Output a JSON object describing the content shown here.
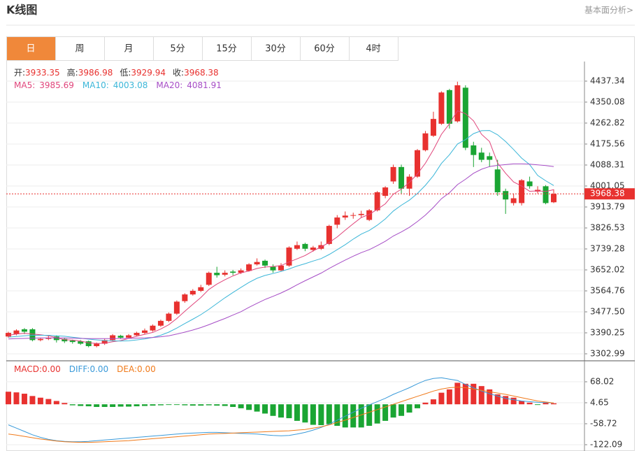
{
  "header": {
    "title": "K线图",
    "link": "基本面分析>"
  },
  "tabs": [
    "日",
    "周",
    "月",
    "5分",
    "15分",
    "30分",
    "60分",
    "4时"
  ],
  "active_tab": 0,
  "chart_data": [
    {
      "type": "candlestick",
      "ohlc_labels": {
        "open": "开:",
        "high": "高:",
        "low": "低:",
        "close": "收:"
      },
      "up_color": "#e8312f",
      "down_color": "#1aa533",
      "ylim": [
        3276.8,
        4512.97
      ],
      "yticks": [
        4437.34,
        4350.08,
        4262.82,
        4175.56,
        4088.31,
        4001.05,
        3913.79,
        3826.53,
        3739.28,
        3652.02,
        3564.76,
        {
          "value": 3477.5,
          "label": "3477.50"
        },
        3390.25,
        3302.99
      ],
      "grid": true,
      "open": [
        3375,
        3385,
        3405,
        3405,
        3360,
        3365,
        3375,
        3365,
        3358,
        3355,
        3355,
        3335,
        3345,
        3360,
        3378,
        3370,
        3380,
        3390,
        3400,
        3420,
        3440,
        3470,
        3522,
        3550,
        3565,
        3590,
        3640,
        3632,
        3645,
        3640,
        3648,
        3675,
        3690,
        3665,
        3650,
        3670,
        3740,
        3760,
        3735,
        3740,
        3760,
        3840,
        3870,
        3878,
        3880,
        3860,
        3900,
        3960,
        4020,
        4080,
        3990,
        4040,
        4150,
        4210,
        4260,
        4400,
        4270,
        4410,
        4170,
        4140,
        4125,
        4070,
        3980,
        3930,
        3930,
        4020,
        3978,
        4000,
        3933.35
      ],
      "high": [
        3395,
        3405,
        3410,
        3410,
        3370,
        3378,
        3380,
        3370,
        3362,
        3360,
        3358,
        3350,
        3365,
        3385,
        3382,
        3385,
        3395,
        3408,
        3425,
        3445,
        3475,
        3525,
        3555,
        3572,
        3590,
        3645,
        3665,
        3650,
        3652,
        3658,
        3680,
        3700,
        3695,
        3675,
        3680,
        3750,
        3770,
        3765,
        3752,
        3770,
        3840,
        3880,
        3895,
        3890,
        3898,
        3905,
        3980,
        4000,
        4090,
        4090,
        4050,
        4155,
        4230,
        4310,
        4395,
        4405,
        4435,
        4420,
        4185,
        4160,
        4140,
        4110,
        3990,
        3970,
        4030,
        4040,
        4000,
        4005,
        3986.98
      ],
      "low": [
        3370,
        3380,
        3385,
        3355,
        3355,
        3360,
        3350,
        3348,
        3345,
        3340,
        3330,
        3330,
        3340,
        3355,
        3365,
        3368,
        3377,
        3385,
        3395,
        3415,
        3435,
        3465,
        3515,
        3545,
        3560,
        3585,
        3620,
        3625,
        3630,
        3635,
        3645,
        3670,
        3660,
        3640,
        3645,
        3665,
        3735,
        3730,
        3728,
        3735,
        3755,
        3825,
        3860,
        3865,
        3870,
        3855,
        3895,
        3950,
        4010,
        3970,
        3960,
        4035,
        4145,
        4205,
        4255,
        4240,
        4265,
        4150,
        4080,
        4100,
        4080,
        3960,
        3885,
        3920,
        3920,
        3990,
        3970,
        3925,
        3929.94
      ],
      "close": [
        3390,
        3400,
        3395,
        3360,
        3365,
        3370,
        3360,
        3355,
        3352,
        3345,
        3335,
        3345,
        3360,
        3380,
        3370,
        3380,
        3390,
        3400,
        3420,
        3440,
        3470,
        3520,
        3550,
        3565,
        3580,
        3640,
        3630,
        3640,
        3640,
        3650,
        3675,
        3685,
        3670,
        3650,
        3670,
        3745,
        3755,
        3740,
        3745,
        3755,
        3835,
        3870,
        3878,
        3880,
        3885,
        3900,
        3975,
        3995,
        4080,
        3990,
        4040,
        4150,
        4220,
        4280,
        4390,
        4260,
        4420,
        4160,
        4130,
        4110,
        4110,
        3975,
        3945,
        3950,
        4025,
        4000,
        3985,
        3930,
        3968.38
      ],
      "series": [
        {
          "name": "MA5:",
          "color": "#e0457b",
          "values": [
            3380,
            3385,
            3388,
            3385,
            3382,
            3378,
            3370,
            3362,
            3360,
            3356,
            3349,
            3346,
            3347,
            3353,
            3358,
            3367,
            3376,
            3384,
            3392,
            3406,
            3424,
            3450,
            3480,
            3509,
            3537,
            3571,
            3593,
            3611,
            3627,
            3640,
            3647,
            3658,
            3664,
            3666,
            3670,
            3685,
            3698,
            3712,
            3731,
            3748,
            3766,
            3789,
            3817,
            3844,
            3870,
            3883,
            3904,
            3927,
            3967,
            3988,
            4016,
            4051,
            4096,
            4152,
            4216,
            4260,
            4314,
            4302,
            4272,
            4216,
            4186,
            4097,
            4054,
            4018,
            4001,
            3979,
            3981,
            3978,
            3985.69
          ]
        },
        {
          "name": "MA10:",
          "color": "#3bb6d8",
          "values": [
            3372,
            3375,
            3378,
            3380,
            3380,
            3380,
            3378,
            3376,
            3372,
            3368,
            3364,
            3361,
            3358,
            3357,
            3356,
            3357,
            3361,
            3365,
            3371,
            3380,
            3393,
            3410,
            3429,
            3447,
            3466,
            3488,
            3512,
            3536,
            3558,
            3579,
            3600,
            3617,
            3629,
            3637,
            3646,
            3656,
            3668,
            3678,
            3689,
            3699,
            3716,
            3736,
            3757,
            3780,
            3801,
            3816,
            3838,
            3864,
            3897,
            3921,
            3942,
            3970,
            4004,
            4044,
            4095,
            4131,
            4176,
            4194,
            4219,
            4231,
            4232,
            4214,
            4186,
            4153,
            4117,
            4090,
            4045,
            4023,
            4003.08
          ]
        },
        {
          "name": "MA20:",
          "color": "#a64dc6",
          "values": [
            3365,
            3366,
            3367,
            3368,
            3369,
            3369,
            3369,
            3369,
            3368,
            3367,
            3366,
            3366,
            3366,
            3366,
            3366,
            3367,
            3368,
            3369,
            3371,
            3374,
            3378,
            3385,
            3393,
            3402,
            3412,
            3424,
            3437,
            3450,
            3464,
            3478,
            3496,
            3513,
            3529,
            3542,
            3556,
            3572,
            3590,
            3607,
            3623,
            3639,
            3658,
            3676,
            3693,
            3709,
            3724,
            3736,
            3753,
            3771,
            3793,
            3810,
            3829,
            3853,
            3880,
            3912,
            3948,
            3973,
            4007,
            4029,
            4054,
            4071,
            4082,
            4087,
            4090,
            4093,
            4093,
            4092,
            4089,
            4086,
            4081.91
          ]
        }
      ]
    },
    {
      "type": "macd",
      "ylim": [
        -141.1,
        131.39
      ],
      "yticks": [
        68.02,
        4.65,
        -58.72,
        -122.09
      ],
      "grid": true,
      "histogram": {
        "name": "MACD:",
        "value_label": "0.00",
        "up_color": "#e8312f",
        "down_color": "#1aa533",
        "values": [
          38,
          36,
          32,
          25,
          20,
          16,
          10,
          4,
          -3,
          -5,
          -6,
          -8,
          -8,
          -8,
          -7,
          -7,
          -6,
          -5,
          -4,
          -3,
          -2,
          -2,
          -3,
          -4,
          -4,
          -3,
          -4,
          -5,
          -8,
          -12,
          -17,
          -22,
          -28,
          -35,
          -40,
          -42,
          -50,
          -55,
          -62,
          -63,
          -60,
          -65,
          -70,
          -70,
          -70,
          -65,
          -58,
          -50,
          -40,
          -35,
          -25,
          -12,
          5,
          15,
          35,
          45,
          65,
          62,
          62,
          55,
          45,
          30,
          25,
          20,
          10,
          5,
          -2,
          5,
          3
        ]
      },
      "series": [
        {
          "name": "DIFF:",
          "value_label": "0.00",
          "color": "#3a9ad9",
          "values": [
            -62,
            -72,
            -82,
            -92,
            -100,
            -106,
            -110,
            -112,
            -113,
            -113,
            -112,
            -110,
            -108,
            -106,
            -104,
            -102,
            -100,
            -98,
            -96,
            -94,
            -92,
            -90,
            -88,
            -87,
            -86,
            -85,
            -85,
            -86,
            -87,
            -88,
            -89,
            -90,
            -92,
            -94,
            -95,
            -94,
            -90,
            -85,
            -78,
            -70,
            -60,
            -48,
            -36,
            -24,
            -12,
            -2,
            8,
            18,
            30,
            40,
            50,
            62,
            72,
            78,
            80,
            76,
            72,
            60,
            50,
            40,
            32,
            25,
            18,
            14,
            10,
            8,
            6,
            5,
            4
          ]
        },
        {
          "name": "DEA:",
          "value_label": "0.00",
          "color": "#f07a1a",
          "values": [
            -90,
            -93,
            -97,
            -101,
            -105,
            -108,
            -111,
            -113,
            -114,
            -115,
            -115,
            -114,
            -113,
            -112,
            -111,
            -110,
            -108,
            -106,
            -104,
            -102,
            -100,
            -98,
            -96,
            -94,
            -92,
            -90,
            -89,
            -88,
            -87,
            -86,
            -85,
            -84,
            -83,
            -82,
            -81,
            -80,
            -78,
            -76,
            -72,
            -68,
            -62,
            -55,
            -48,
            -40,
            -32,
            -24,
            -16,
            -8,
            0,
            8,
            16,
            24,
            32,
            40,
            46,
            50,
            52,
            50,
            46,
            42,
            38,
            34,
            30,
            25,
            20,
            15,
            10,
            7,
            4
          ]
        }
      ]
    }
  ]
}
